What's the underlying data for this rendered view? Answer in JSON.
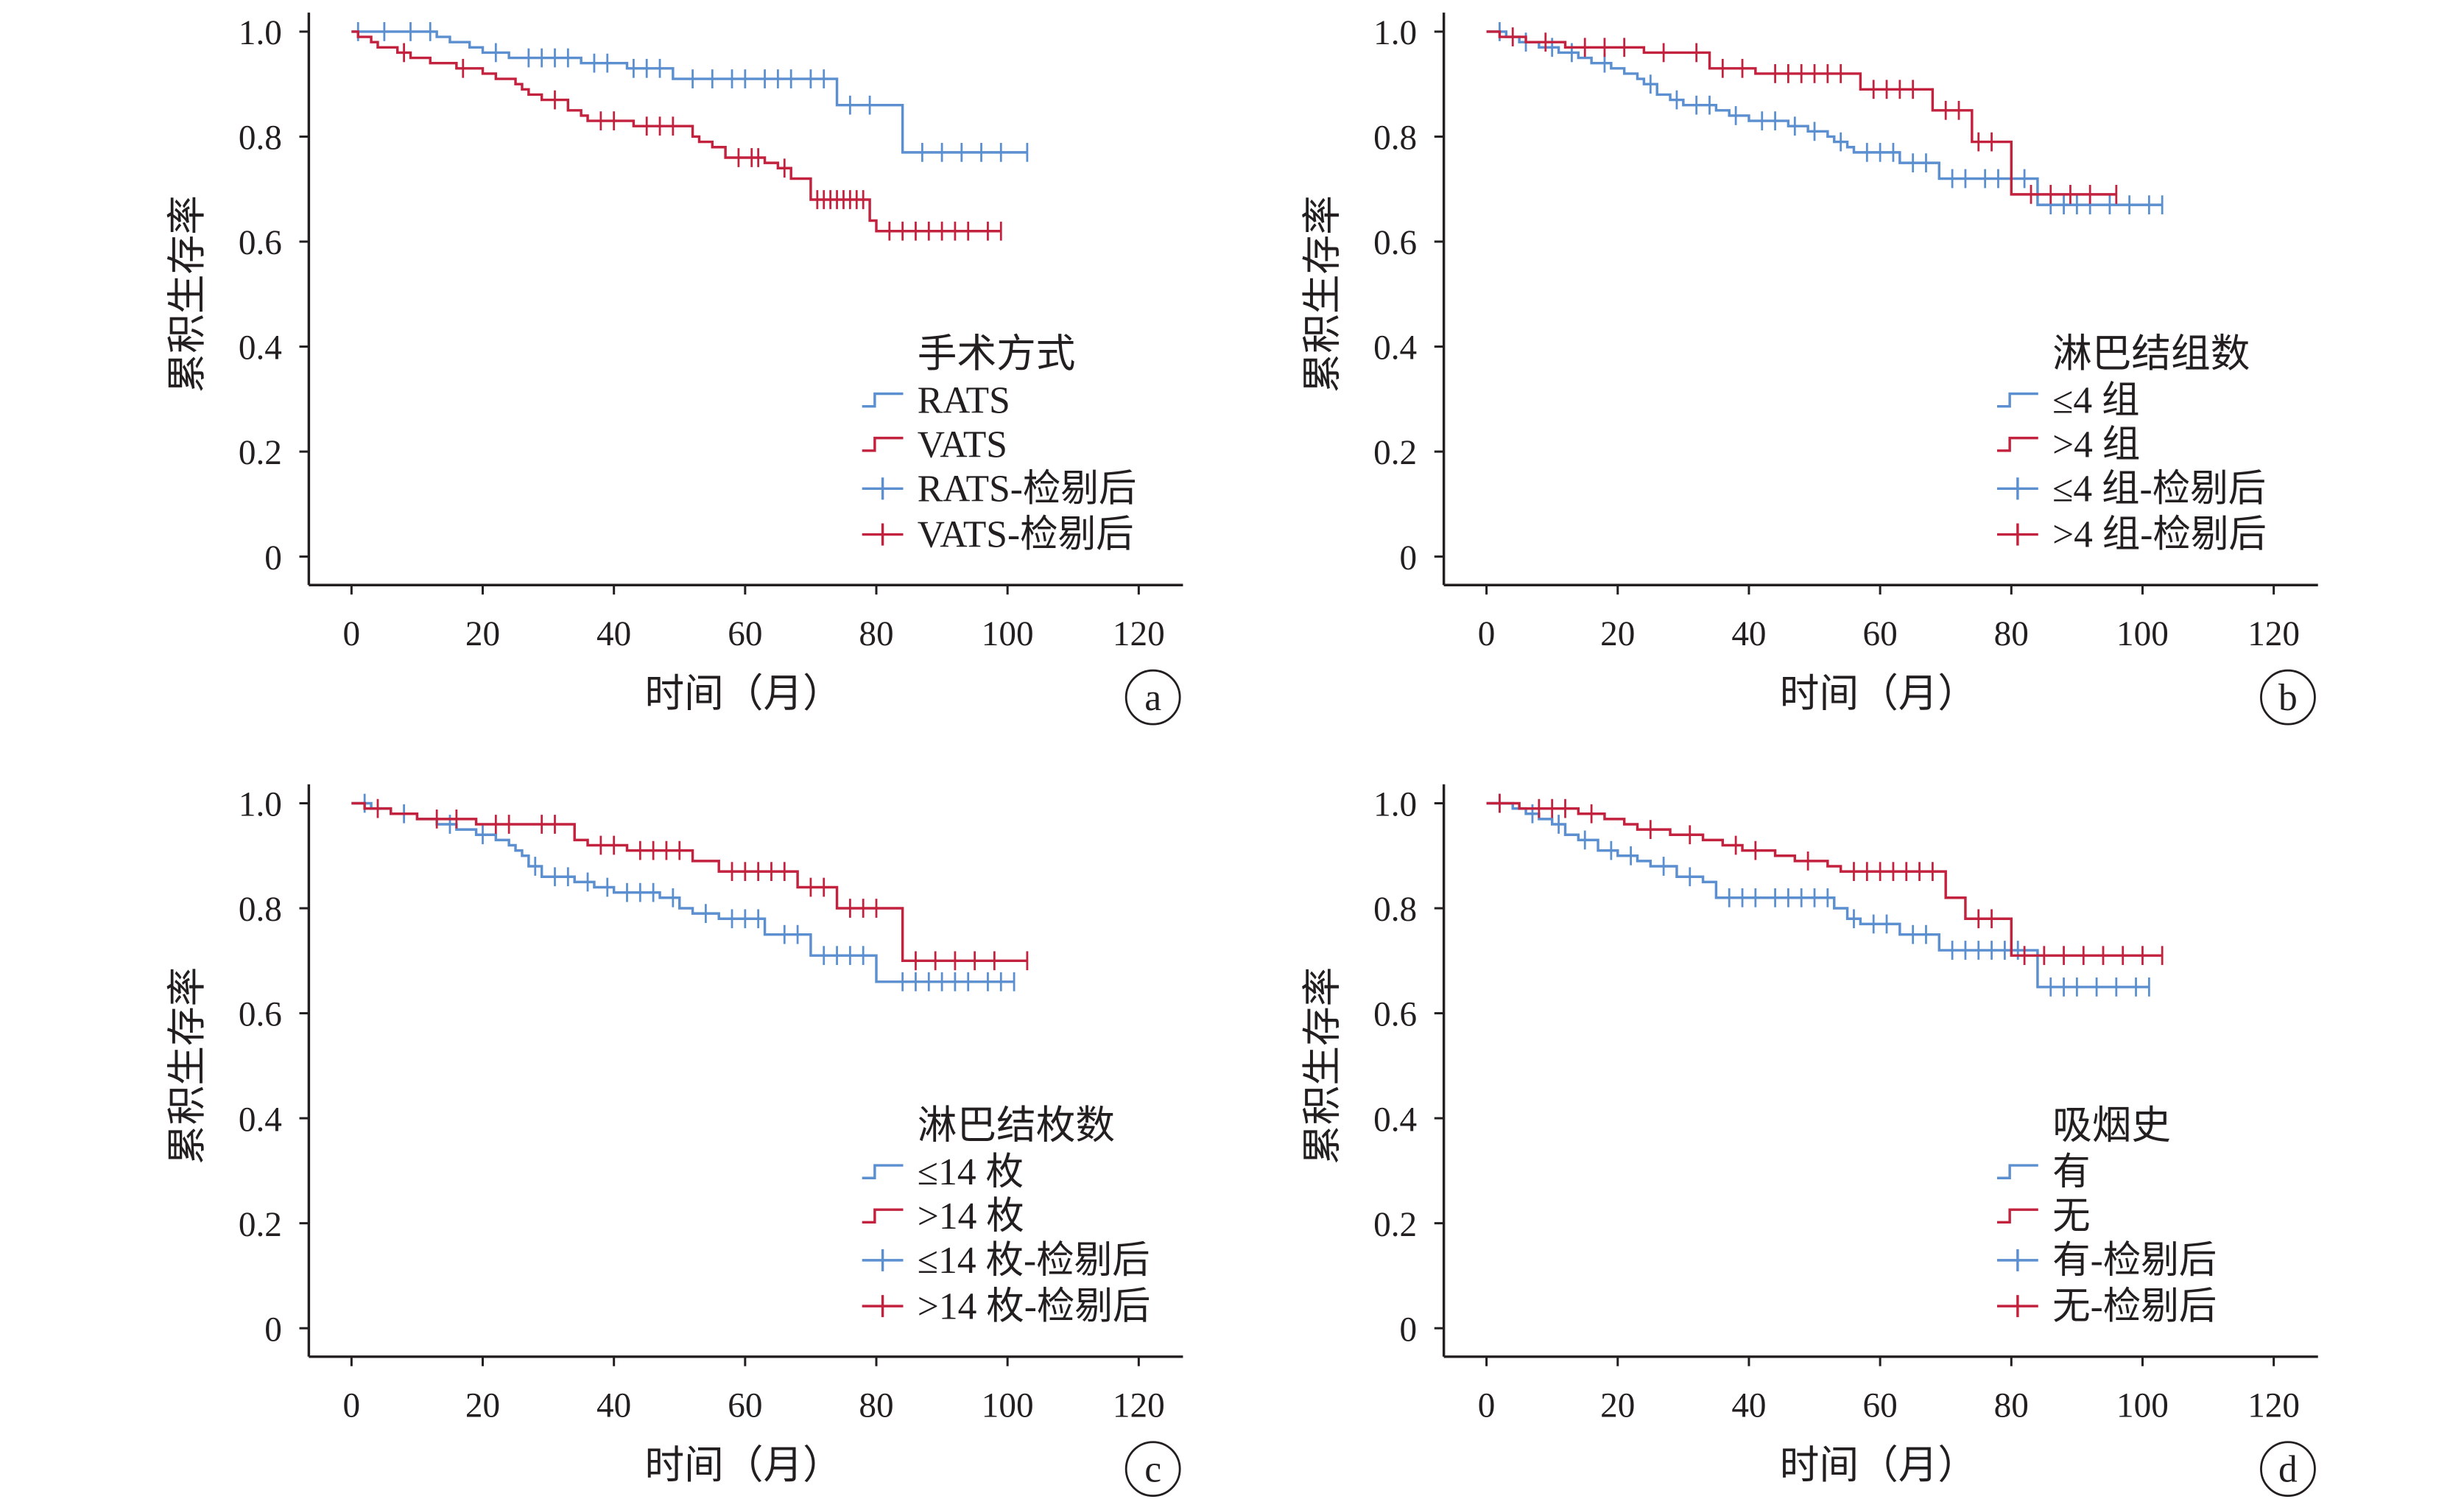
{
  "chart_data": [
    {
      "type": "line",
      "line_style": "step",
      "panel_label": "a",
      "xlabel": "时间（月）",
      "ylabel": "累积生存率",
      "xlim": [
        0,
        120
      ],
      "ylim": [
        0,
        1.0
      ],
      "x_ticks": [
        "0",
        "20",
        "40",
        "60",
        "80",
        "100",
        "120"
      ],
      "y_ticks": [
        "0",
        "0.2",
        "0.4",
        "0.6",
        "0.8",
        "1.0"
      ],
      "grid": false,
      "legend": {
        "title": "手术方式",
        "placement": "right"
      },
      "series": [
        {
          "name": "RATS",
          "censor_label": "RATS-检剔后",
          "color": "#5b8fcf",
          "steps": [
            [
              0,
              1.0
            ],
            [
              13,
              0.99
            ],
            [
              15,
              0.98
            ],
            [
              18,
              0.97
            ],
            [
              20,
              0.96
            ],
            [
              24,
              0.95
            ],
            [
              35,
              0.94
            ],
            [
              42,
              0.93
            ],
            [
              49,
              0.91
            ],
            [
              74,
              0.86
            ],
            [
              84,
              0.77
            ]
          ],
          "end": 103,
          "censored": [
            1,
            5,
            9,
            12,
            22,
            27,
            29,
            31,
            33,
            37,
            39,
            43,
            45,
            47,
            52,
            55,
            58,
            60,
            63,
            65,
            67,
            70,
            72,
            76,
            79,
            87,
            90,
            93,
            96,
            99,
            103
          ]
        },
        {
          "name": "VATS",
          "censor_label": "VATS-检剔后",
          "color": "#c3223e",
          "steps": [
            [
              0,
              1.0
            ],
            [
              1,
              0.99
            ],
            [
              3,
              0.98
            ],
            [
              4,
              0.97
            ],
            [
              7,
              0.96
            ],
            [
              9,
              0.95
            ],
            [
              12,
              0.94
            ],
            [
              16,
              0.93
            ],
            [
              20,
              0.92
            ],
            [
              22,
              0.91
            ],
            [
              25,
              0.9
            ],
            [
              26,
              0.89
            ],
            [
              27,
              0.88
            ],
            [
              29,
              0.87
            ],
            [
              33,
              0.85
            ],
            [
              35,
              0.84
            ],
            [
              36,
              0.83
            ],
            [
              43,
              0.82
            ],
            [
              52,
              0.8
            ],
            [
              53,
              0.79
            ],
            [
              55,
              0.78
            ],
            [
              57,
              0.76
            ],
            [
              63,
              0.75
            ],
            [
              65,
              0.74
            ],
            [
              67,
              0.72
            ],
            [
              70,
              0.68
            ],
            [
              79,
              0.64
            ],
            [
              80,
              0.62
            ]
          ],
          "end": 99,
          "censored": [
            8,
            17,
            31,
            38,
            40,
            45,
            47,
            49,
            59,
            61,
            62,
            66,
            71,
            72,
            73,
            74,
            75,
            76,
            77,
            78,
            82,
            84,
            86,
            88,
            90,
            92,
            94,
            97,
            99
          ]
        }
      ]
    },
    {
      "type": "line",
      "line_style": "step",
      "panel_label": "b",
      "xlabel": "时间（月）",
      "ylabel": "累积生存率",
      "xlim": [
        0,
        120
      ],
      "ylim": [
        0,
        1.0
      ],
      "x_ticks": [
        "0",
        "20",
        "40",
        "60",
        "80",
        "100",
        "120"
      ],
      "y_ticks": [
        "0",
        "0.2",
        "0.4",
        "0.6",
        "0.8",
        "1.0"
      ],
      "grid": false,
      "legend": {
        "title": "淋巴结组数",
        "placement": "right"
      },
      "series": [
        {
          "name": "≤4 组",
          "censor_label": "≤4 组-检剔后",
          "color": "#5b8fcf",
          "steps": [
            [
              0,
              1.0
            ],
            [
              3,
              0.99
            ],
            [
              5,
              0.98
            ],
            [
              8,
              0.97
            ],
            [
              11,
              0.96
            ],
            [
              14,
              0.95
            ],
            [
              16,
              0.94
            ],
            [
              19,
              0.93
            ],
            [
              21,
              0.92
            ],
            [
              23,
              0.91
            ],
            [
              24,
              0.9
            ],
            [
              26,
              0.88
            ],
            [
              28,
              0.87
            ],
            [
              30,
              0.86
            ],
            [
              35,
              0.85
            ],
            [
              37,
              0.84
            ],
            [
              40,
              0.83
            ],
            [
              46,
              0.82
            ],
            [
              49,
              0.81
            ],
            [
              52,
              0.8
            ],
            [
              53,
              0.79
            ],
            [
              55,
              0.78
            ],
            [
              56,
              0.77
            ],
            [
              63,
              0.75
            ],
            [
              69,
              0.72
            ],
            [
              84,
              0.67
            ]
          ],
          "end": 103,
          "censored": [
            2,
            6,
            10,
            13,
            18,
            25,
            29,
            32,
            34,
            38,
            42,
            44,
            47,
            50,
            54,
            58,
            60,
            62,
            65,
            67,
            71,
            73,
            76,
            78,
            80,
            82,
            86,
            88,
            90,
            92,
            95,
            98,
            101,
            103
          ]
        },
        {
          "name": ">4 组",
          "censor_label": ">4 组-检剔后",
          "color": "#c3223e",
          "steps": [
            [
              0,
              1.0
            ],
            [
              2,
              0.99
            ],
            [
              6,
              0.98
            ],
            [
              12,
              0.97
            ],
            [
              24,
              0.96
            ],
            [
              34,
              0.93
            ],
            [
              41,
              0.92
            ],
            [
              57,
              0.89
            ],
            [
              68,
              0.85
            ],
            [
              74,
              0.79
            ],
            [
              80,
              0.69
            ]
          ],
          "end": 96,
          "censored": [
            4,
            9,
            15,
            18,
            21,
            27,
            32,
            36,
            39,
            44,
            46,
            48,
            50,
            52,
            54,
            59,
            61,
            63,
            65,
            70,
            72,
            75,
            77,
            83,
            86,
            89,
            92,
            96
          ]
        }
      ]
    },
    {
      "type": "line",
      "line_style": "step",
      "panel_label": "c",
      "xlabel": "时间（月）",
      "ylabel": "累积生存率",
      "xlim": [
        0,
        120
      ],
      "ylim": [
        0,
        1.0
      ],
      "x_ticks": [
        "0",
        "20",
        "40",
        "60",
        "80",
        "100",
        "120"
      ],
      "y_ticks": [
        "0",
        "0.2",
        "0.4",
        "0.6",
        "0.8",
        "1.0"
      ],
      "grid": false,
      "legend": {
        "title": "淋巴结枚数",
        "placement": "right"
      },
      "series": [
        {
          "name": "≤14 枚",
          "censor_label": "≤14 枚-检剔后",
          "color": "#5b8fcf",
          "steps": [
            [
              0,
              1.0
            ],
            [
              3,
              0.99
            ],
            [
              6,
              0.98
            ],
            [
              10,
              0.97
            ],
            [
              13,
              0.96
            ],
            [
              16,
              0.95
            ],
            [
              19,
              0.94
            ],
            [
              22,
              0.93
            ],
            [
              24,
              0.92
            ],
            [
              25,
              0.91
            ],
            [
              26,
              0.9
            ],
            [
              27,
              0.88
            ],
            [
              29,
              0.86
            ],
            [
              34,
              0.85
            ],
            [
              37,
              0.84
            ],
            [
              40,
              0.83
            ],
            [
              47,
              0.82
            ],
            [
              50,
              0.8
            ],
            [
              52,
              0.79
            ],
            [
              56,
              0.78
            ],
            [
              63,
              0.75
            ],
            [
              70,
              0.71
            ],
            [
              80,
              0.66
            ]
          ],
          "end": 101,
          "censored": [
            2,
            8,
            15,
            20,
            28,
            31,
            33,
            36,
            39,
            42,
            44,
            46,
            49,
            54,
            58,
            60,
            62,
            66,
            68,
            72,
            74,
            76,
            78,
            84,
            86,
            88,
            90,
            92,
            94,
            97,
            99,
            101
          ]
        },
        {
          "name": ">14 枚",
          "censor_label": ">14 枚-检剔后",
          "color": "#c3223e",
          "steps": [
            [
              0,
              1.0
            ],
            [
              2,
              0.99
            ],
            [
              6,
              0.98
            ],
            [
              10,
              0.97
            ],
            [
              19,
              0.96
            ],
            [
              34,
              0.93
            ],
            [
              36,
              0.92
            ],
            [
              42,
              0.91
            ],
            [
              52,
              0.89
            ],
            [
              56,
              0.87
            ],
            [
              68,
              0.84
            ],
            [
              74,
              0.8
            ],
            [
              84,
              0.7
            ]
          ],
          "end": 103,
          "censored": [
            4,
            13,
            16,
            22,
            24,
            29,
            31,
            38,
            40,
            44,
            46,
            48,
            50,
            58,
            60,
            62,
            64,
            66,
            70,
            72,
            76,
            78,
            80,
            86,
            89,
            92,
            95,
            98,
            103
          ]
        }
      ]
    },
    {
      "type": "line",
      "line_style": "step",
      "panel_label": "d",
      "xlabel": "时间（月）",
      "ylabel": "累积生存率",
      "xlim": [
        0,
        120
      ],
      "ylim": [
        0,
        1.0
      ],
      "x_ticks": [
        "0",
        "20",
        "40",
        "60",
        "80",
        "100",
        "120"
      ],
      "y_ticks": [
        "0",
        "0.2",
        "0.4",
        "0.6",
        "0.8",
        "1.0"
      ],
      "grid": false,
      "legend": {
        "title": "吸烟史",
        "placement": "right"
      },
      "series": [
        {
          "name": "有",
          "censor_label": "有-检剔后",
          "color": "#5b8fcf",
          "steps": [
            [
              0,
              1.0
            ],
            [
              4,
              0.99
            ],
            [
              6,
              0.98
            ],
            [
              8,
              0.97
            ],
            [
              10,
              0.96
            ],
            [
              12,
              0.94
            ],
            [
              14,
              0.93
            ],
            [
              17,
              0.91
            ],
            [
              20,
              0.9
            ],
            [
              23,
              0.89
            ],
            [
              25,
              0.88
            ],
            [
              29,
              0.86
            ],
            [
              33,
              0.85
            ],
            [
              35,
              0.82
            ],
            [
              53,
              0.8
            ],
            [
              55,
              0.78
            ],
            [
              57,
              0.77
            ],
            [
              63,
              0.75
            ],
            [
              69,
              0.72
            ],
            [
              84,
              0.65
            ]
          ],
          "end": 101,
          "censored": [
            2,
            7,
            11,
            15,
            19,
            22,
            27,
            31,
            37,
            39,
            41,
            44,
            46,
            48,
            50,
            52,
            56,
            59,
            61,
            65,
            67,
            71,
            73,
            75,
            77,
            79,
            81,
            86,
            88,
            90,
            93,
            96,
            99,
            101
          ]
        },
        {
          "name": "无",
          "censor_label": "无-检剔后",
          "color": "#c3223e",
          "steps": [
            [
              0,
              1.0
            ],
            [
              5,
              0.99
            ],
            [
              14,
              0.98
            ],
            [
              18,
              0.97
            ],
            [
              21,
              0.96
            ],
            [
              23,
              0.95
            ],
            [
              28,
              0.94
            ],
            [
              33,
              0.93
            ],
            [
              36,
              0.92
            ],
            [
              39,
              0.91
            ],
            [
              44,
              0.9
            ],
            [
              47,
              0.89
            ],
            [
              52,
              0.88
            ],
            [
              54,
              0.87
            ],
            [
              70,
              0.82
            ],
            [
              73,
              0.78
            ],
            [
              80,
              0.71
            ]
          ],
          "end": 103,
          "censored": [
            2,
            8,
            10,
            12,
            16,
            25,
            31,
            38,
            41,
            49,
            56,
            58,
            60,
            62,
            64,
            66,
            68,
            75,
            77,
            82,
            85,
            88,
            91,
            94,
            97,
            100,
            103
          ]
        }
      ]
    }
  ]
}
